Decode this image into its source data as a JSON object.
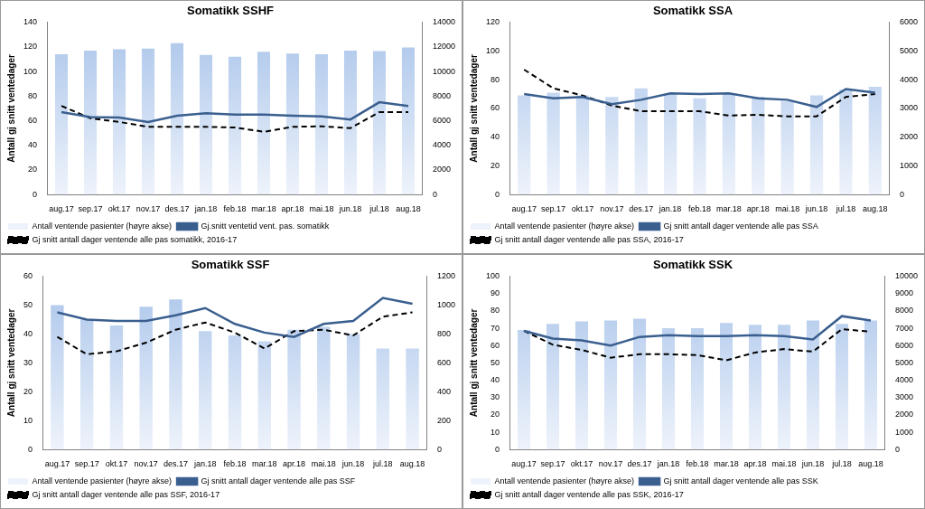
{
  "chart_data": [
    {
      "type": "bar",
      "title": "Somatikk SSHF",
      "ylabel": "Antall gj snitt ventedager",
      "categories": [
        "aug.17",
        "sep.17",
        "okt.17",
        "nov.17",
        "des.17",
        "jan.18",
        "feb.18",
        "mar.18",
        "apr.18",
        "mai.18",
        "jun.18",
        "jul.18",
        "aug.18"
      ],
      "ylim": [
        0,
        140
      ],
      "yticks": [
        0,
        20,
        40,
        60,
        80,
        100,
        120,
        140
      ],
      "y2lim": [
        0,
        14000
      ],
      "y2ticks": [
        0,
        2000,
        4000,
        6000,
        8000,
        10000,
        12000,
        14000
      ],
      "grid": false,
      "legend": "bottom",
      "series": [
        {
          "name": "Antall ventende pasienter (høyre akse)",
          "type": "bar",
          "axis": "y2",
          "color": "#a9c4ea",
          "values": [
            11400,
            11700,
            11800,
            11850,
            12300,
            11350,
            11200,
            11600,
            11450,
            11400,
            11700,
            11650,
            11950
          ]
        },
        {
          "name": "Gj.snitt ventetid vent. pas. somatikk",
          "type": "line",
          "color": "#3a5f8f",
          "line_style": "solid",
          "values": [
            67,
            63,
            62.5,
            59,
            64,
            66,
            65,
            65,
            64,
            63.5,
            61,
            75,
            72
          ]
        },
        {
          "name": "Gj snitt antall dager ventende alle pas somatikk, 2016-17",
          "type": "line",
          "color": "#000000",
          "line_style": "dashed",
          "values": [
            72,
            62,
            59,
            55,
            55,
            55,
            54.5,
            51,
            55,
            55.5,
            54,
            67,
            67
          ]
        }
      ]
    },
    {
      "type": "bar",
      "title": "Somatikk SSA",
      "ylabel": "Antall gj snitt ventedager",
      "categories": [
        "aug.17",
        "sep.17",
        "okt.17",
        "nov.17",
        "des.17",
        "jan.18",
        "feb.18",
        "mar.18",
        "apr.18",
        "mai.18",
        "jun.18",
        "jul.18",
        "aug.18"
      ],
      "ylim": [
        0,
        120
      ],
      "yticks": [
        0,
        20,
        40,
        60,
        80,
        100,
        120
      ],
      "y2lim": [
        0,
        6000
      ],
      "y2ticks": [
        0,
        1000,
        2000,
        3000,
        4000,
        5000,
        6000
      ],
      "grid": false,
      "legend": "bottom",
      "series": [
        {
          "name": "Antall ventende pasienter (høyre akse)",
          "type": "bar",
          "axis": "y2",
          "color": "#a9c4ea",
          "values": [
            3450,
            3550,
            3450,
            3400,
            3700,
            3500,
            3350,
            3500,
            3400,
            3250,
            3450,
            3650,
            3750
          ]
        },
        {
          "name": "Gj snitt antall dager ventende alle pas SSA",
          "type": "line",
          "color": "#3a5f8f",
          "line_style": "solid",
          "values": [
            70,
            67,
            68,
            63,
            66,
            70.5,
            70,
            70.5,
            67,
            66,
            61,
            73.5,
            71
          ]
        },
        {
          "name": "Gj snitt antall dager ventende alle pas SSA, 2016-17",
          "type": "line",
          "color": "#000000",
          "line_style": "dashed",
          "values": [
            87,
            74,
            69,
            62,
            58,
            58,
            58,
            55,
            55.5,
            54.5,
            54.5,
            68,
            70
          ]
        }
      ]
    },
    {
      "type": "bar",
      "title": "Somatikk SSF",
      "ylabel": "Antall gj snitt ventedager",
      "categories": [
        "aug.17",
        "sep.17",
        "okt.17",
        "nov.17",
        "des.17",
        "jan.18",
        "feb.18",
        "mar.18",
        "apr.18",
        "mai.18",
        "jun.18",
        "jul.18",
        "aug.18"
      ],
      "ylim": [
        0,
        60
      ],
      "yticks": [
        0,
        10,
        20,
        30,
        40,
        50,
        60
      ],
      "y2lim": [
        0,
        1200
      ],
      "y2ticks": [
        0,
        200,
        400,
        600,
        800,
        1000,
        1200
      ],
      "grid": false,
      "legend": "bottom",
      "series": [
        {
          "name": "Antall ventende pasienter (høyre akse)",
          "type": "bar",
          "axis": "y2",
          "color": "#a9c4ea",
          "values": [
            1000,
            900,
            860,
            990,
            1040,
            820,
            790,
            750,
            830,
            850,
            800,
            700,
            700
          ]
        },
        {
          "name": "Gj snitt antall dager ventende alle pas SSF",
          "type": "line",
          "color": "#3a5f8f",
          "line_style": "solid",
          "values": [
            47.5,
            45,
            44.5,
            44.5,
            46.5,
            49,
            43.5,
            40.5,
            39,
            43.5,
            44.5,
            52.5,
            50.5
          ]
        },
        {
          "name": "Gj snitt antall dager ventende alle pas SSF, 2016-17",
          "type": "line",
          "color": "#000000",
          "line_style": "dashed",
          "values": [
            39,
            33,
            34,
            37,
            41.5,
            44,
            40.5,
            35,
            41,
            41.5,
            39.5,
            46,
            47.5
          ]
        }
      ]
    },
    {
      "type": "bar",
      "title": "Somatikk SSK",
      "ylabel": "Antall gj snitt ventedager",
      "categories": [
        "aug.17",
        "sep.17",
        "okt.17",
        "nov.17",
        "des.17",
        "jan.18",
        "feb.18",
        "mar.18",
        "apr.18",
        "mai.18",
        "jun.18",
        "jul.18",
        "aug.18"
      ],
      "ylim": [
        0,
        100
      ],
      "yticks": [
        0,
        10,
        20,
        30,
        40,
        50,
        60,
        70,
        80,
        90,
        100
      ],
      "y2lim": [
        0,
        10000
      ],
      "y2ticks": [
        0,
        1000,
        2000,
        3000,
        4000,
        5000,
        6000,
        7000,
        8000,
        9000,
        10000
      ],
      "grid": false,
      "legend": "bottom",
      "series": [
        {
          "name": "Antall ventende pasienter (høyre akse)",
          "type": "bar",
          "axis": "y2",
          "color": "#a9c4ea",
          "values": [
            6900,
            7250,
            7400,
            7450,
            7550,
            7000,
            7000,
            7300,
            7200,
            7200,
            7450,
            7250,
            7450
          ]
        },
        {
          "name": "Gj snitt antall dager ventende alle pas SSK",
          "type": "line",
          "color": "#3a5f8f",
          "line_style": "solid",
          "values": [
            68.5,
            64,
            63,
            60,
            65,
            66,
            65.5,
            65.5,
            66,
            65.5,
            63.5,
            77,
            74.5
          ]
        },
        {
          "name": "Gj snitt antall dager ventende alle pas SSK, 2016-17",
          "type": "line",
          "color": "#000000",
          "line_style": "dashed",
          "values": [
            68.5,
            60.5,
            57.5,
            53,
            55,
            55,
            54.5,
            51.5,
            56,
            58,
            56.5,
            69.5,
            68
          ]
        }
      ]
    }
  ]
}
